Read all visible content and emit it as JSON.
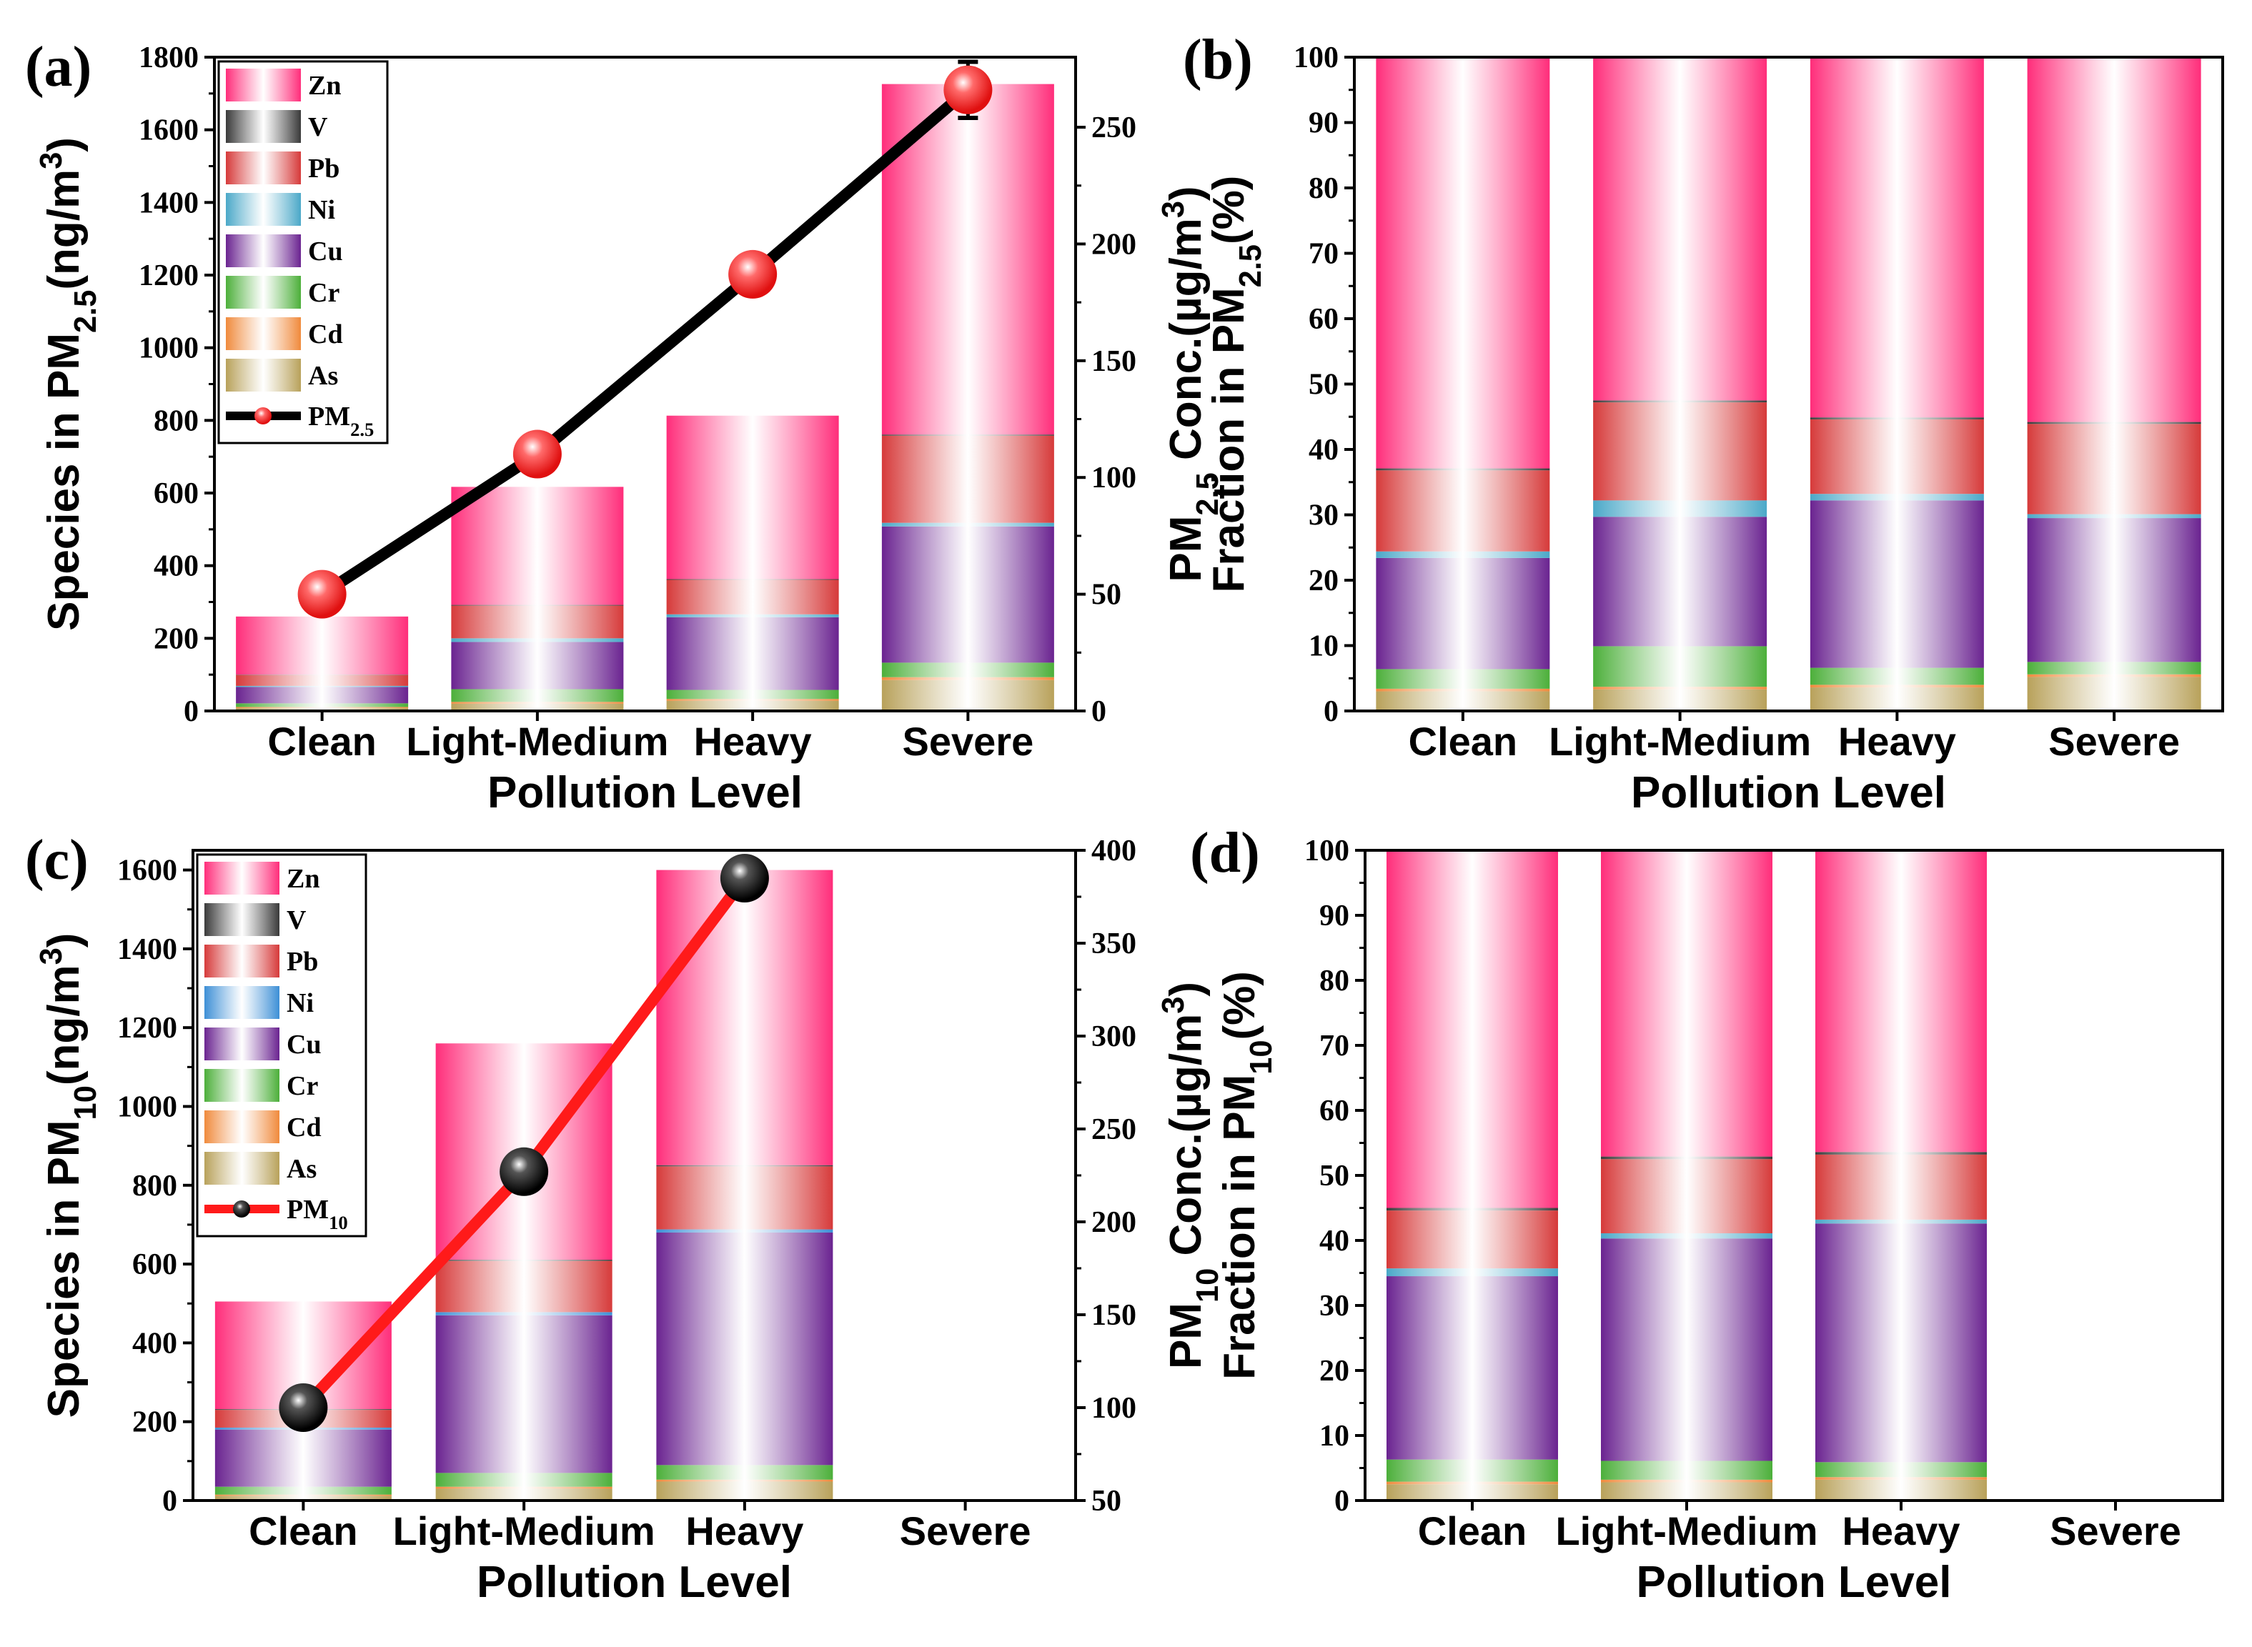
{
  "figure": {
    "categories": [
      "Clean",
      "Light-Medium",
      "Heavy",
      "Severe"
    ],
    "species": [
      "As",
      "Cd",
      "Cr",
      "Cu",
      "Ni",
      "Pb",
      "V",
      "Zn"
    ],
    "species_colors": {
      "As": "#b8a15a",
      "Cd": "#f08a3c",
      "Cr": "#4caf3a",
      "Cu": "#6a2390",
      "Ni": "#4aa8c8",
      "Pb": "#d63a3a",
      "V": "#3a3a3a",
      "Zn": "#ff2d7a"
    },
    "species_colors_c": {
      "As": "#b8a15a",
      "Cd": "#f08a3c",
      "Cr": "#4caf3a",
      "Cu": "#6a2390",
      "Ni": "#3d8fd6",
      "Pb": "#d63a3a",
      "V": "#3a3a3a",
      "Zn": "#ff2d7a"
    },
    "legend_order": [
      "Zn",
      "V",
      "Pb",
      "Ni",
      "Cu",
      "Cr",
      "Cd",
      "As"
    ]
  },
  "chart_data": [
    {
      "panel": "(a)",
      "type": "bar",
      "stacked": true,
      "categories": [
        "Clean",
        "Light-Medium",
        "Heavy",
        "Severe"
      ],
      "series": [
        {
          "name": "As",
          "values": [
            8,
            20,
            28,
            85
          ]
        },
        {
          "name": "Cd",
          "values": [
            3,
            5,
            5,
            8
          ]
        },
        {
          "name": "Cr",
          "values": [
            10,
            35,
            25,
            40
          ]
        },
        {
          "name": "Cu",
          "values": [
            45,
            130,
            200,
            375
          ]
        },
        {
          "name": "Ni",
          "values": [
            3,
            10,
            8,
            10
          ]
        },
        {
          "name": "Pb",
          "values": [
            30,
            90,
            95,
            240
          ]
        },
        {
          "name": "V",
          "values": [
            1,
            2,
            2,
            3
          ]
        },
        {
          "name": "Zn",
          "values": [
            160,
            325,
            450,
            965
          ]
        }
      ],
      "line": {
        "name": "PM2.5",
        "values": [
          50,
          110,
          187,
          266
        ],
        "errors": [
          8,
          8,
          8,
          12
        ]
      },
      "xlabel": "Pollution Level",
      "ylabel": "Species in PM2.5(ng/m3)",
      "y2label": "PM2.5 Conc.(µg/m3)",
      "ylim": [
        0,
        1800
      ],
      "y2lim": [
        0,
        280
      ],
      "yticks": [
        0,
        200,
        400,
        600,
        800,
        1000,
        1200,
        1400,
        1600,
        1800
      ],
      "y2ticks": [
        0,
        50,
        100,
        150,
        200,
        250
      ],
      "legend": "top-left"
    },
    {
      "panel": "(b)",
      "type": "bar",
      "stacked": true,
      "categories": [
        "Clean",
        "Light-Medium",
        "Heavy",
        "Severe"
      ],
      "series": [
        {
          "name": "As",
          "values": [
            3.0,
            3.3,
            3.6,
            5.2
          ]
        },
        {
          "name": "Cd",
          "values": [
            0.4,
            0.4,
            0.4,
            0.4
          ]
        },
        {
          "name": "Cr",
          "values": [
            3.0,
            6.2,
            2.6,
            1.9
          ]
        },
        {
          "name": "Cu",
          "values": [
            17.0,
            19.8,
            25.6,
            22.0
          ]
        },
        {
          "name": "Ni",
          "values": [
            1.0,
            2.5,
            1.0,
            0.6
          ]
        },
        {
          "name": "Pb",
          "values": [
            12.4,
            15.0,
            11.4,
            13.8
          ]
        },
        {
          "name": "V",
          "values": [
            0.3,
            0.3,
            0.3,
            0.3
          ]
        },
        {
          "name": "Zn",
          "values": [
            62.9,
            52.5,
            55.1,
            55.8
          ]
        }
      ],
      "xlabel": "Pollution Level",
      "ylabel": "Fraction in PM2.5(%)",
      "ylim": [
        0,
        100
      ],
      "yticks": [
        0,
        10,
        20,
        30,
        40,
        50,
        60,
        70,
        80,
        90,
        100
      ]
    },
    {
      "panel": "(c)",
      "type": "bar",
      "stacked": true,
      "categories": [
        "Clean",
        "Light-Medium",
        "Heavy",
        "Severe"
      ],
      "series": [
        {
          "name": "As",
          "values": [
            12,
            30,
            48,
            0
          ]
        },
        {
          "name": "Cd",
          "values": [
            3,
            5,
            5,
            0
          ]
        },
        {
          "name": "Cr",
          "values": [
            20,
            35,
            37,
            0
          ]
        },
        {
          "name": "Cu",
          "values": [
            145,
            400,
            590,
            0
          ]
        },
        {
          "name": "Ni",
          "values": [
            5,
            8,
            8,
            0
          ]
        },
        {
          "name": "Pb",
          "values": [
            45,
            130,
            160,
            0
          ]
        },
        {
          "name": "V",
          "values": [
            2,
            3,
            3,
            0
          ]
        },
        {
          "name": "Zn",
          "values": [
            273,
            549,
            749,
            0
          ]
        }
      ],
      "line": {
        "name": "PM10",
        "values": [
          100,
          227,
          385
        ],
        "errors": [
          5,
          5,
          6
        ]
      },
      "xlabel": "Pollution Level",
      "ylabel": "Species in PM10(ng/m3)",
      "y2label": "PM10 Conc.(µg/m3)",
      "ylim": [
        0,
        1650
      ],
      "y2lim": [
        50,
        400
      ],
      "yticks": [
        0,
        200,
        400,
        600,
        800,
        1000,
        1200,
        1400,
        1600
      ],
      "y2ticks": [
        50,
        100,
        150,
        200,
        250,
        300,
        350,
        400
      ],
      "legend": "top-left"
    },
    {
      "panel": "(d)",
      "type": "bar",
      "stacked": true,
      "categories": [
        "Clean",
        "Light-Medium",
        "Heavy",
        "Severe"
      ],
      "series": [
        {
          "name": "As",
          "values": [
            2.5,
            2.8,
            3.2,
            0
          ]
        },
        {
          "name": "Cd",
          "values": [
            0.4,
            0.4,
            0.4,
            0
          ]
        },
        {
          "name": "Cr",
          "values": [
            3.4,
            2.9,
            2.3,
            0
          ]
        },
        {
          "name": "Cu",
          "values": [
            28.2,
            34.2,
            36.7,
            0
          ]
        },
        {
          "name": "Ni",
          "values": [
            1.2,
            0.8,
            0.6,
            0
          ]
        },
        {
          "name": "Pb",
          "values": [
            8.9,
            11.4,
            10.0,
            0
          ]
        },
        {
          "name": "V",
          "values": [
            0.4,
            0.4,
            0.4,
            0
          ]
        },
        {
          "name": "Zn",
          "values": [
            55.0,
            47.1,
            46.4,
            0
          ]
        }
      ],
      "xlabel": "Pollution Level",
      "ylabel": "Fraction in PM10(%)",
      "ylim": [
        0,
        100
      ],
      "yticks": [
        0,
        10,
        20,
        30,
        40,
        50,
        60,
        70,
        80,
        90,
        100
      ]
    }
  ],
  "labels": {
    "a": "(a)",
    "b": "(b)",
    "c": "(c)",
    "d": "(d)",
    "xlabel": "Pollution Level",
    "species_prefix": "Species in PM",
    "fraction_prefix": "Fraction in PM",
    "pm25_sub": "2.5",
    "pm10_sub": "10",
    "unit_ng": "(ng/m",
    "unit_ug": "(µg/m",
    "cubed": "3",
    "close": ")",
    "conc": "Conc.",
    "pct": "(%)",
    "pm": "PM",
    "legend_pm25": "PM",
    "legend_pm25_sub": "2.5",
    "legend_pm10": "PM",
    "legend_pm10_sub": "10"
  }
}
